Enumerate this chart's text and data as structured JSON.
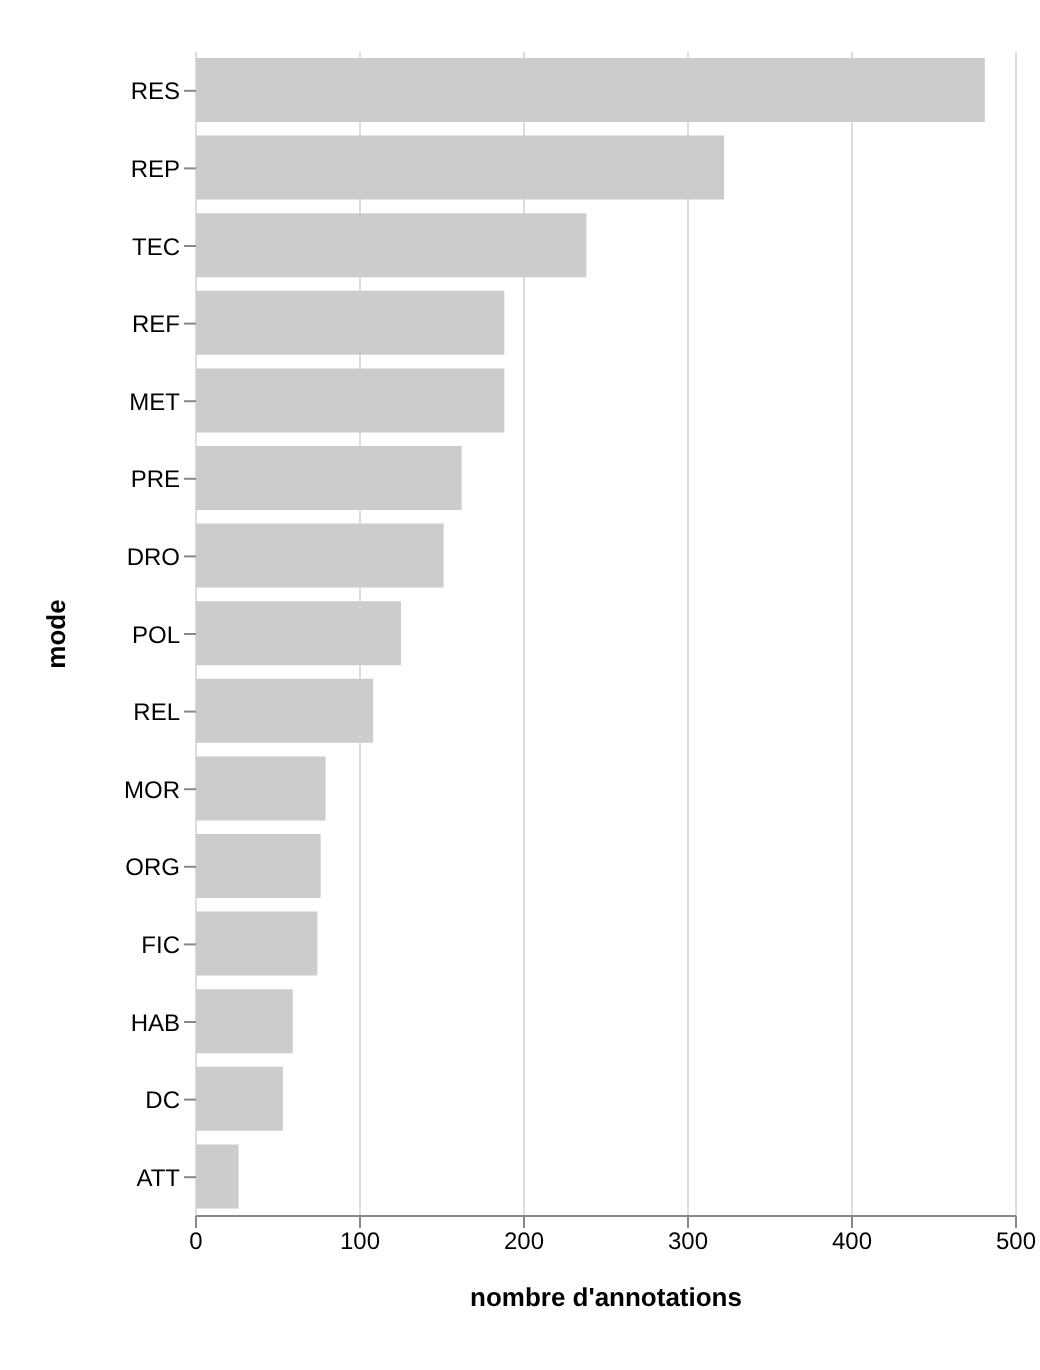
{
  "chart_data": {
    "type": "bar",
    "orientation": "horizontal",
    "xlabel": "nombre d'annotations",
    "ylabel": "mode",
    "categories": [
      "RES",
      "REP",
      "TEC",
      "REF",
      "MET",
      "PRE",
      "DRO",
      "POL",
      "REL",
      "MOR",
      "ORG",
      "FIC",
      "HAB",
      "DC",
      "ATT"
    ],
    "values": [
      481,
      322,
      238,
      188,
      188,
      162,
      151,
      125,
      108,
      79,
      76,
      74,
      59,
      53,
      26
    ],
    "color": "#cccccc",
    "xlim": [
      0,
      500
    ],
    "xticks": [
      0,
      100,
      200,
      300,
      400,
      500
    ],
    "grid": "x",
    "legend": false
  }
}
